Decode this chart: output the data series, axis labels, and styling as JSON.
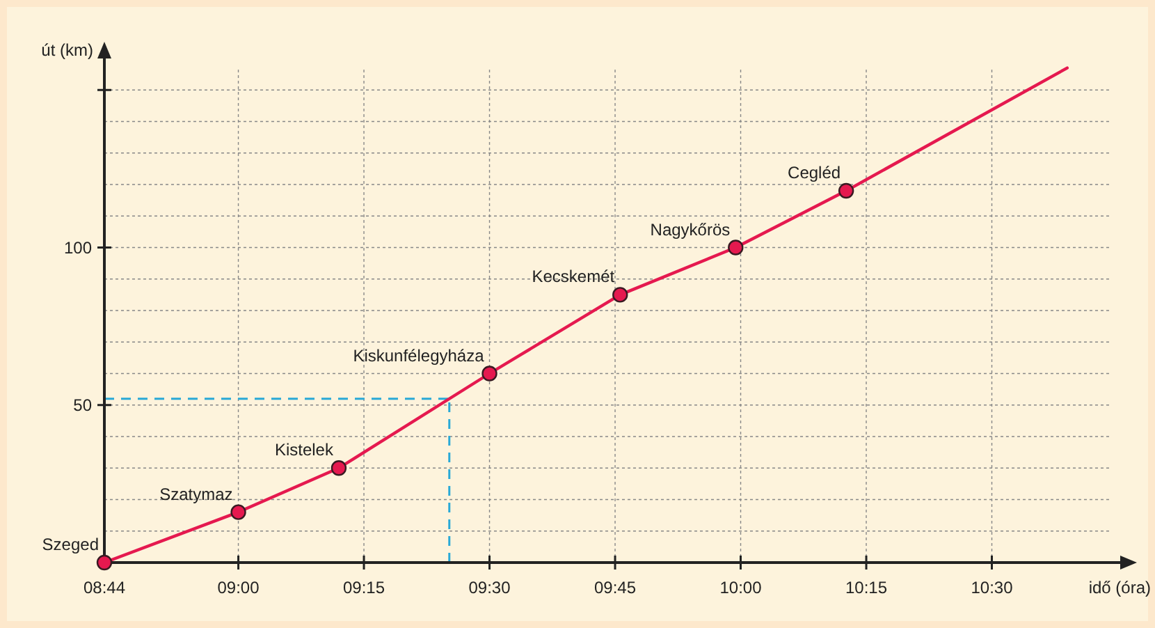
{
  "chart_data": {
    "type": "line",
    "xlabel": "idő (óra)",
    "ylabel": "út (km)",
    "xlim": [
      8.7333,
      10.75
    ],
    "ylim": [
      0,
      160
    ],
    "xticks": [
      {
        "value": 8.7333,
        "label": "08:44"
      },
      {
        "value": 9,
        "label": "09:00"
      },
      {
        "value": 9.25,
        "label": "09:15"
      },
      {
        "value": 9.5,
        "label": "09:30"
      },
      {
        "value": 9.75,
        "label": "09:45"
      },
      {
        "value": 10,
        "label": "10:00"
      },
      {
        "value": 10.25,
        "label": "10:15"
      },
      {
        "value": 10.5,
        "label": "10:30"
      }
    ],
    "yticks": [
      {
        "value": 10,
        "label": null
      },
      {
        "value": 20,
        "label": null
      },
      {
        "value": 30,
        "label": null
      },
      {
        "value": 40,
        "label": null
      },
      50,
      {
        "value": 60,
        "label": null
      },
      {
        "value": 70,
        "label": null
      },
      {
        "value": 80,
        "label": null
      },
      {
        "value": 90,
        "label": null
      },
      100,
      {
        "value": 110,
        "label": null
      },
      {
        "value": 120,
        "label": null
      },
      {
        "value": 130,
        "label": null
      },
      {
        "value": 140,
        "label": null
      },
      {
        "value": 150,
        "label": null
      }
    ],
    "grid": true,
    "series": [
      {
        "color": "#e5194f",
        "marker": "none",
        "x": [
          8.7333,
          9,
          9.2,
          9.5,
          9.76,
          9.99,
          10.21,
          10.65
        ],
        "values": [
          0,
          16,
          30,
          60,
          85,
          100,
          118,
          157
        ]
      },
      {
        "type": "scatter",
        "color": "#e5194f",
        "marker": "circle",
        "x": [
          8.7333,
          9,
          9.2,
          9.5,
          9.76,
          9.99,
          10.21
        ],
        "values": [
          0,
          16,
          30,
          60,
          85,
          100,
          118
        ]
      }
    ],
    "ref_lines": [
      {
        "axis": "y",
        "value": 52,
        "color": "#29a9d6",
        "line_style": "dashed"
      },
      {
        "axis": "x",
        "value": 9.42,
        "color": "#29a9d6",
        "line_style": "dashed"
      }
    ],
    "annotations": [
      {
        "text": "Szeged",
        "x": 8.7333,
        "y": 0
      },
      {
        "text": "Szatymaz",
        "x": 9,
        "y": 16
      },
      {
        "text": "Kistelek",
        "x": 9.2,
        "y": 30
      },
      {
        "text": "Kiskunfélegyháza",
        "x": 9.5,
        "y": 60
      },
      {
        "text": "Kecskemét",
        "x": 9.76,
        "y": 85
      },
      {
        "text": "Nagykőrös",
        "x": 9.99,
        "y": 100
      },
      {
        "text": "Cegléd",
        "x": 10.21,
        "y": 118
      }
    ]
  }
}
